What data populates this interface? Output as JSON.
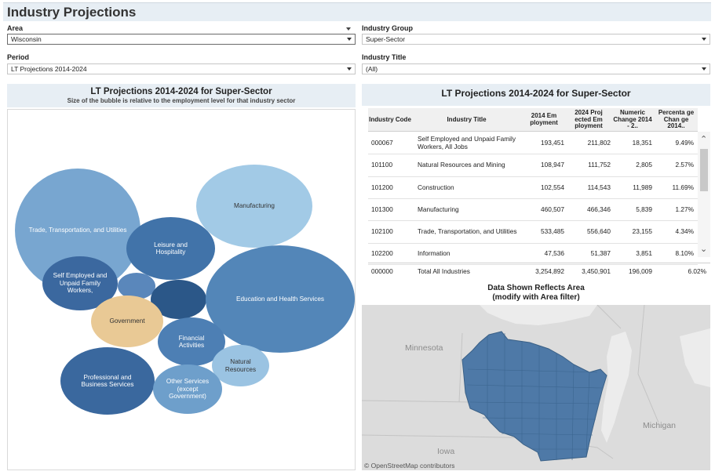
{
  "header": {
    "title": "Industry Projections"
  },
  "filters": {
    "area": {
      "label": "Area",
      "value": "Wisconsin"
    },
    "industry_group": {
      "label": "Industry Group",
      "value": "Super-Sector"
    },
    "period": {
      "label": "Period",
      "value": "LT Projections 2014-2024"
    },
    "industry_title": {
      "label": "Industry Title",
      "value": "(All)"
    }
  },
  "bubble_panel": {
    "title": "LT Projections 2014-2024 for Super-Sector",
    "subtitle": "Size of the bubble is relative to the employment level for that industry sector",
    "bubbles": [
      {
        "label": "Trade, Transportation, and Utilities",
        "color": "#78a6d0"
      },
      {
        "label": "Manufacturing",
        "color": "#a2cae6"
      },
      {
        "label": "Leisure and Hospitality",
        "color": "#4173a9"
      },
      {
        "label": "Self Employed and Unpaid Family Workers,",
        "color": "#3b689f"
      },
      {
        "label": "",
        "color": "#5a87bb"
      },
      {
        "label": "",
        "color": "#2b5788"
      },
      {
        "label": "Education and Health Services",
        "color": "#5386b8"
      },
      {
        "label": "Government",
        "color": "#e9c995"
      },
      {
        "label": "Financial Activities",
        "color": "#4d7fb4"
      },
      {
        "label": "Natural Resources",
        "color": "#9ac3e2"
      },
      {
        "label": "Professional and Business Services",
        "color": "#3a689e"
      },
      {
        "label": "Other Services (except Government)",
        "color": "#6e9fcb"
      }
    ]
  },
  "table_panel": {
    "title": "LT Projections 2014-2024 for Super-Sector",
    "columns": [
      "Industry Code",
      "Industry Title",
      "2014 Em ployment",
      "2024 Proj ected Em ployment",
      "Numeric Change 2014 - 2..",
      "Percenta ge Chan ge 2014.."
    ],
    "rows": [
      [
        "000067",
        "Self Employed and Unpaid Family Workers, All Jobs",
        "193,451",
        "211,802",
        "18,351",
        "9.49%"
      ],
      [
        "101100",
        "Natural Resources and Mining",
        "108,947",
        "111,752",
        "2,805",
        "2.57%"
      ],
      [
        "101200",
        "Construction",
        "102,554",
        "114,543",
        "11,989",
        "11.69%"
      ],
      [
        "101300",
        "Manufacturing",
        "460,507",
        "466,346",
        "5,839",
        "1.27%"
      ],
      [
        "102100",
        "Trade, Transportation, and Utilities",
        "533,485",
        "556,640",
        "23,155",
        "4.34%"
      ],
      [
        "102200",
        "Information",
        "47,536",
        "51,387",
        "3,851",
        "8.10%"
      ]
    ],
    "total": [
      "000000",
      "Total All Industries",
      "3,254,892",
      "3,450,901",
      "196,009",
      "6.02%"
    ]
  },
  "map_panel": {
    "title_line1": "Data Shown Reflects Area",
    "title_line2": "(modify with Area filter)",
    "labels": {
      "minnesota": "Minnesota",
      "michigan": "Michigan",
      "iowa": "Iowa"
    },
    "attribution": "© OpenStreetMap contributors",
    "colors": {
      "state_fill": "#4e79a7",
      "land": "#dcdcdc",
      "water": "#ececec"
    }
  }
}
